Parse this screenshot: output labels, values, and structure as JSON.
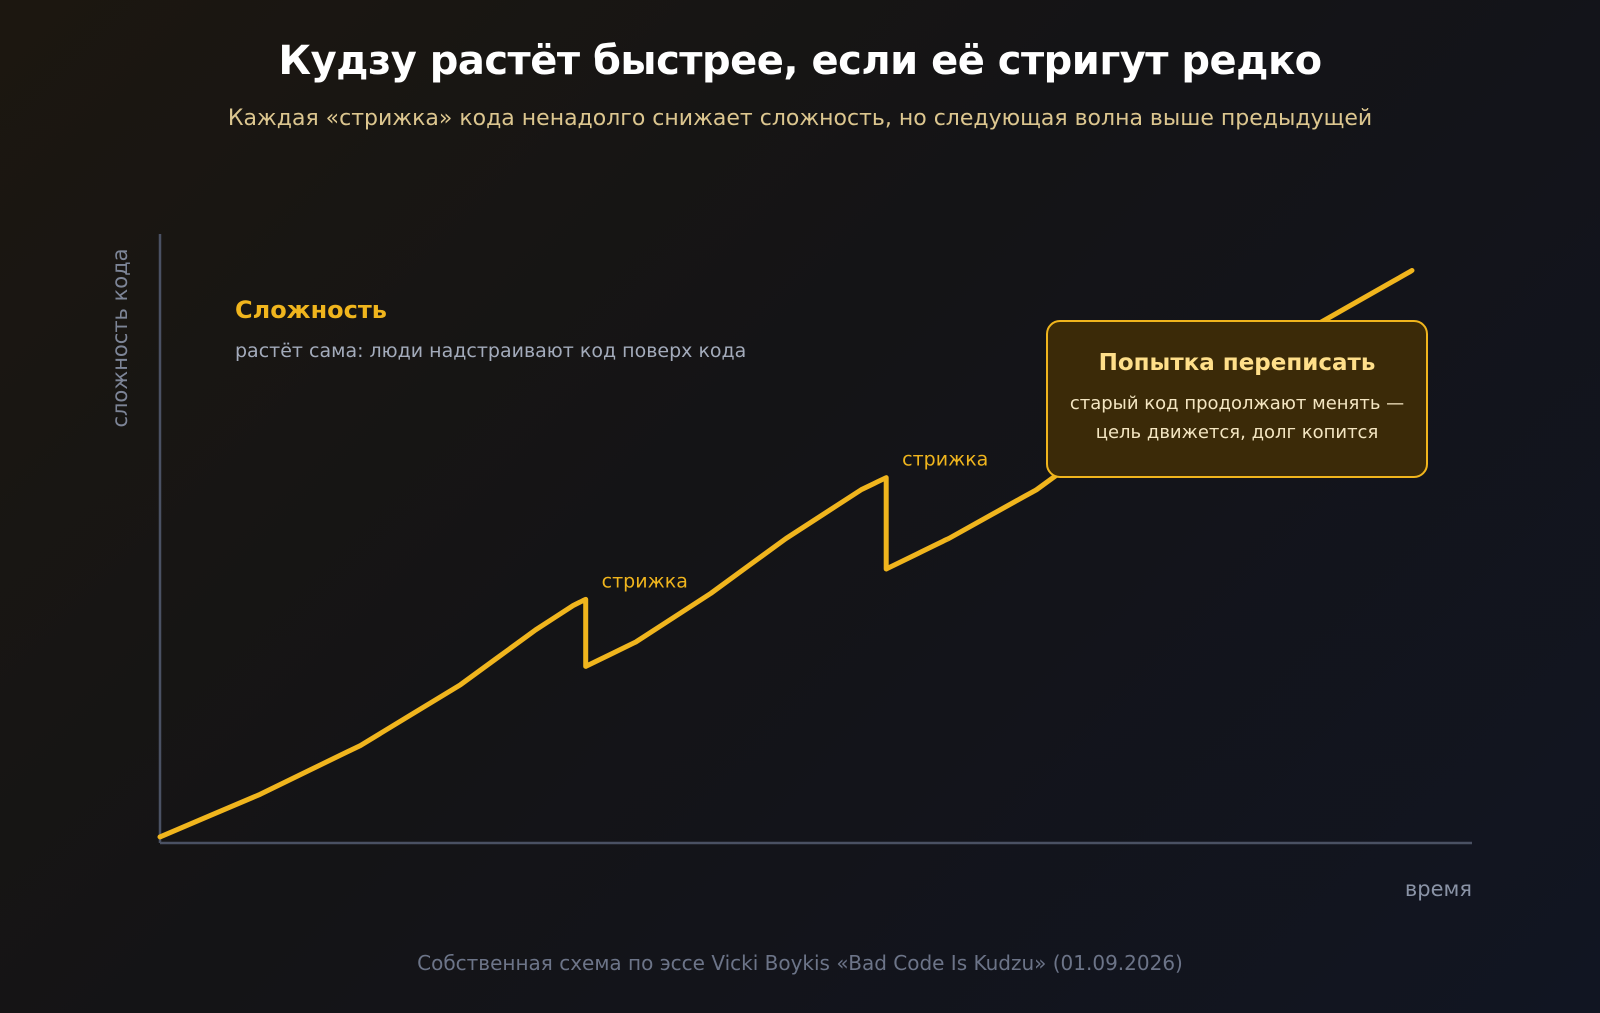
{
  "header": {
    "title": "Кудзу растёт быстрее, если её стригут редко",
    "subtitle": "Каждая «стрижка» кода ненадолго снижает сложность, но следующая волна выше предыдущей"
  },
  "footer": {
    "source": "Собственная схема по эссе Vicki Boykis «Bad Code Is Kudzu» (01.09.2026)"
  },
  "colors": {
    "line": "#f0b51d",
    "axis": "#4a5163",
    "note_fill": "#3b2a08",
    "note_border": "#f0b51d"
  },
  "chart_data": {
    "type": "line",
    "title": "Кудзу растёт быстрее, если её стригут редко",
    "xlabel": "время",
    "ylabel": "сложность кода",
    "xlim": [
      0,
      100
    ],
    "ylim": [
      0,
      100
    ],
    "grid": false,
    "series": [
      {
        "name": "Сложность",
        "points": [
          [
            0,
            1
          ],
          [
            8,
            8
          ],
          [
            16,
            16
          ],
          [
            24,
            26
          ],
          [
            30,
            35
          ],
          [
            33,
            39
          ],
          [
            34,
            40
          ],
          [
            34,
            29
          ],
          [
            38,
            33
          ],
          [
            44,
            41
          ],
          [
            50,
            50
          ],
          [
            56,
            58
          ],
          [
            58,
            60
          ],
          [
            58,
            45
          ],
          [
            63,
            50
          ],
          [
            70,
            58
          ],
          [
            76,
            67
          ],
          [
            84,
            76
          ],
          [
            88,
            80
          ],
          [
            100,
            94
          ]
        ]
      }
    ],
    "annotations": [
      {
        "label": "Сложность",
        "text": "растёт сама: люди надстраивают код поверх кода"
      },
      {
        "label": "стрижка",
        "x": 34
      },
      {
        "label": "стрижка",
        "x": 58
      },
      {
        "label": "Попытка переписать",
        "text": "старый код продолжают менять — цель движется, долг копится"
      }
    ]
  }
}
